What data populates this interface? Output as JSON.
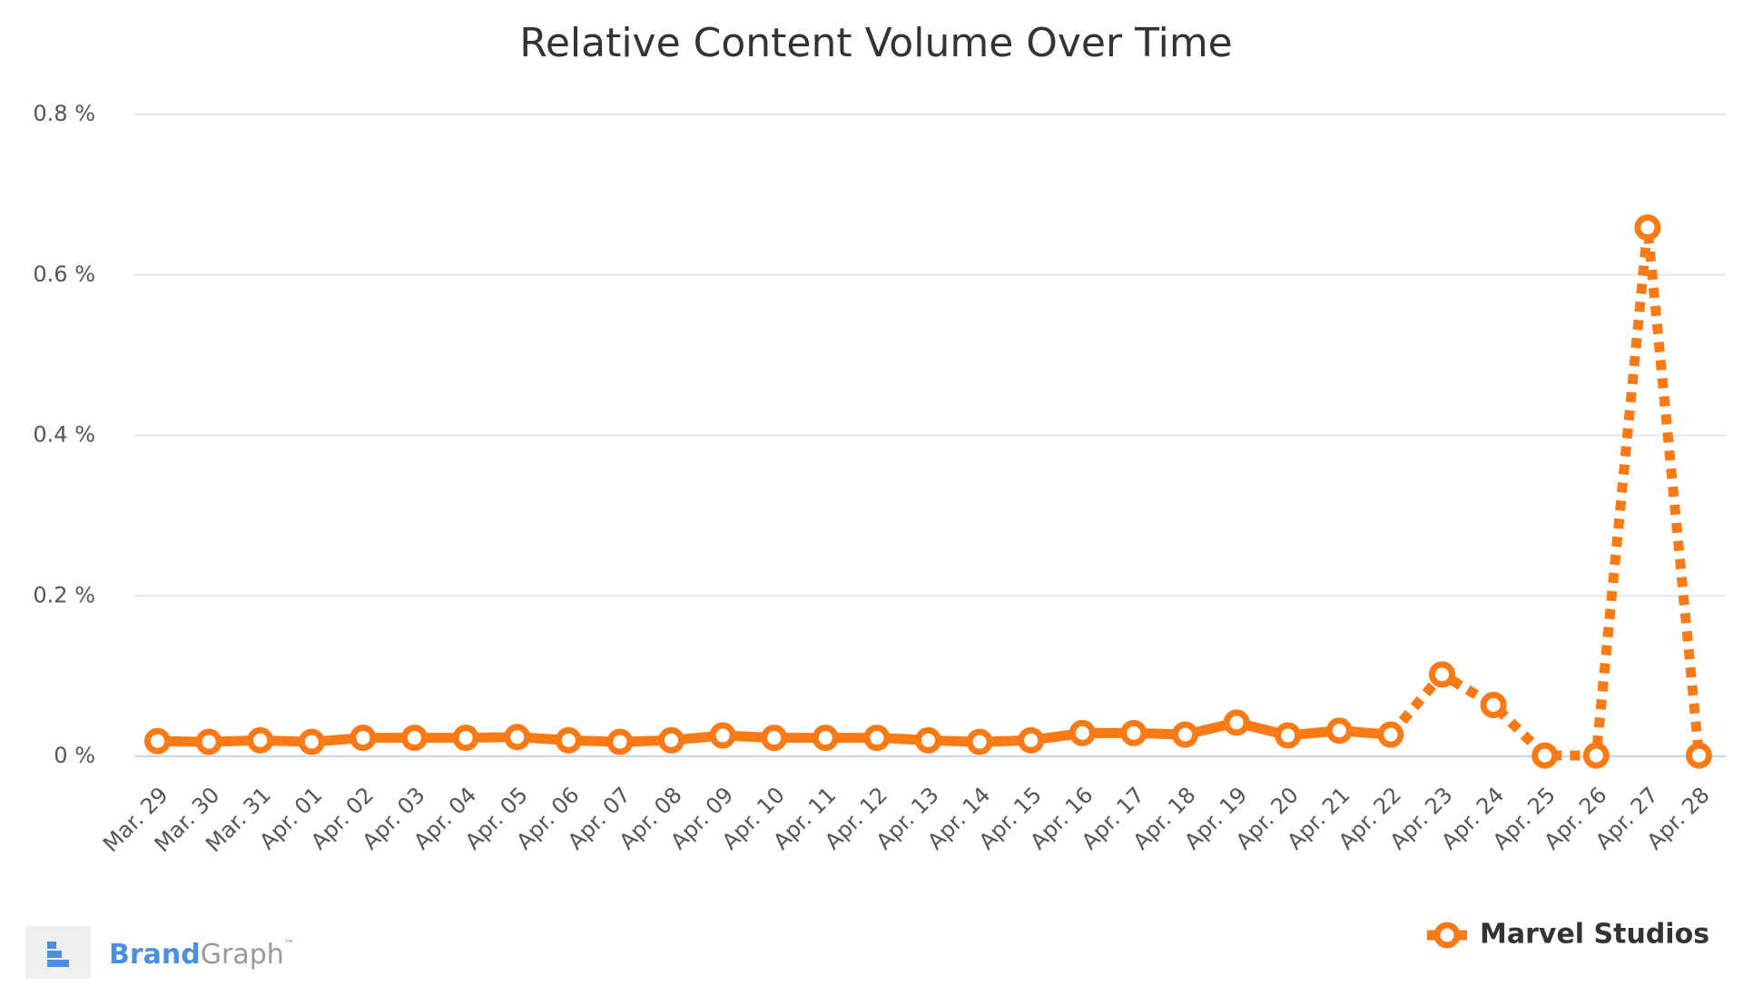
{
  "chart_data": {
    "type": "line",
    "title": "Relative Content Volume Over Time",
    "categories": [
      "Mar. 29",
      "Mar. 30",
      "Mar. 31",
      "Apr. 01",
      "Apr. 02",
      "Apr. 03",
      "Apr. 04",
      "Apr. 05",
      "Apr. 06",
      "Apr. 07",
      "Apr. 08",
      "Apr. 09",
      "Apr. 10",
      "Apr. 11",
      "Apr. 12",
      "Apr. 13",
      "Apr. 14",
      "Apr. 15",
      "Apr. 16",
      "Apr. 17",
      "Apr. 18",
      "Apr. 19",
      "Apr. 20",
      "Apr. 21",
      "Apr. 22",
      "Apr. 23",
      "Apr. 24",
      "Apr. 25",
      "Apr. 26",
      "Apr. 27",
      "Apr. 28"
    ],
    "series": [
      {
        "name": "Marvel Studios",
        "color": "#fb7a15",
        "values": [
          0.019,
          0.018,
          0.02,
          0.018,
          0.023,
          0.023,
          0.023,
          0.024,
          0.02,
          0.018,
          0.02,
          0.026,
          0.023,
          0.023,
          0.023,
          0.02,
          0.018,
          0.02,
          0.029,
          0.029,
          0.027,
          0.042,
          0.026,
          0.032,
          0.027,
          0.102,
          0.064,
          0.001,
          0.001,
          0.659,
          0.001
        ]
      }
    ],
    "dash_start": 24,
    "ylim": [
      0,
      0.8
    ],
    "yticks": [
      {
        "value": 0,
        "label": "0 %"
      },
      {
        "value": 0.2,
        "label": "0.2 %"
      },
      {
        "value": 0.4,
        "label": "0.4 %"
      },
      {
        "value": 0.6,
        "label": "0.6 %"
      },
      {
        "value": 0.8,
        "label": "0.8 %"
      }
    ],
    "grid": true,
    "legend": "bottom-right"
  },
  "branding": {
    "brand": "Brand",
    "graph": "Graph",
    "tm": "™"
  }
}
